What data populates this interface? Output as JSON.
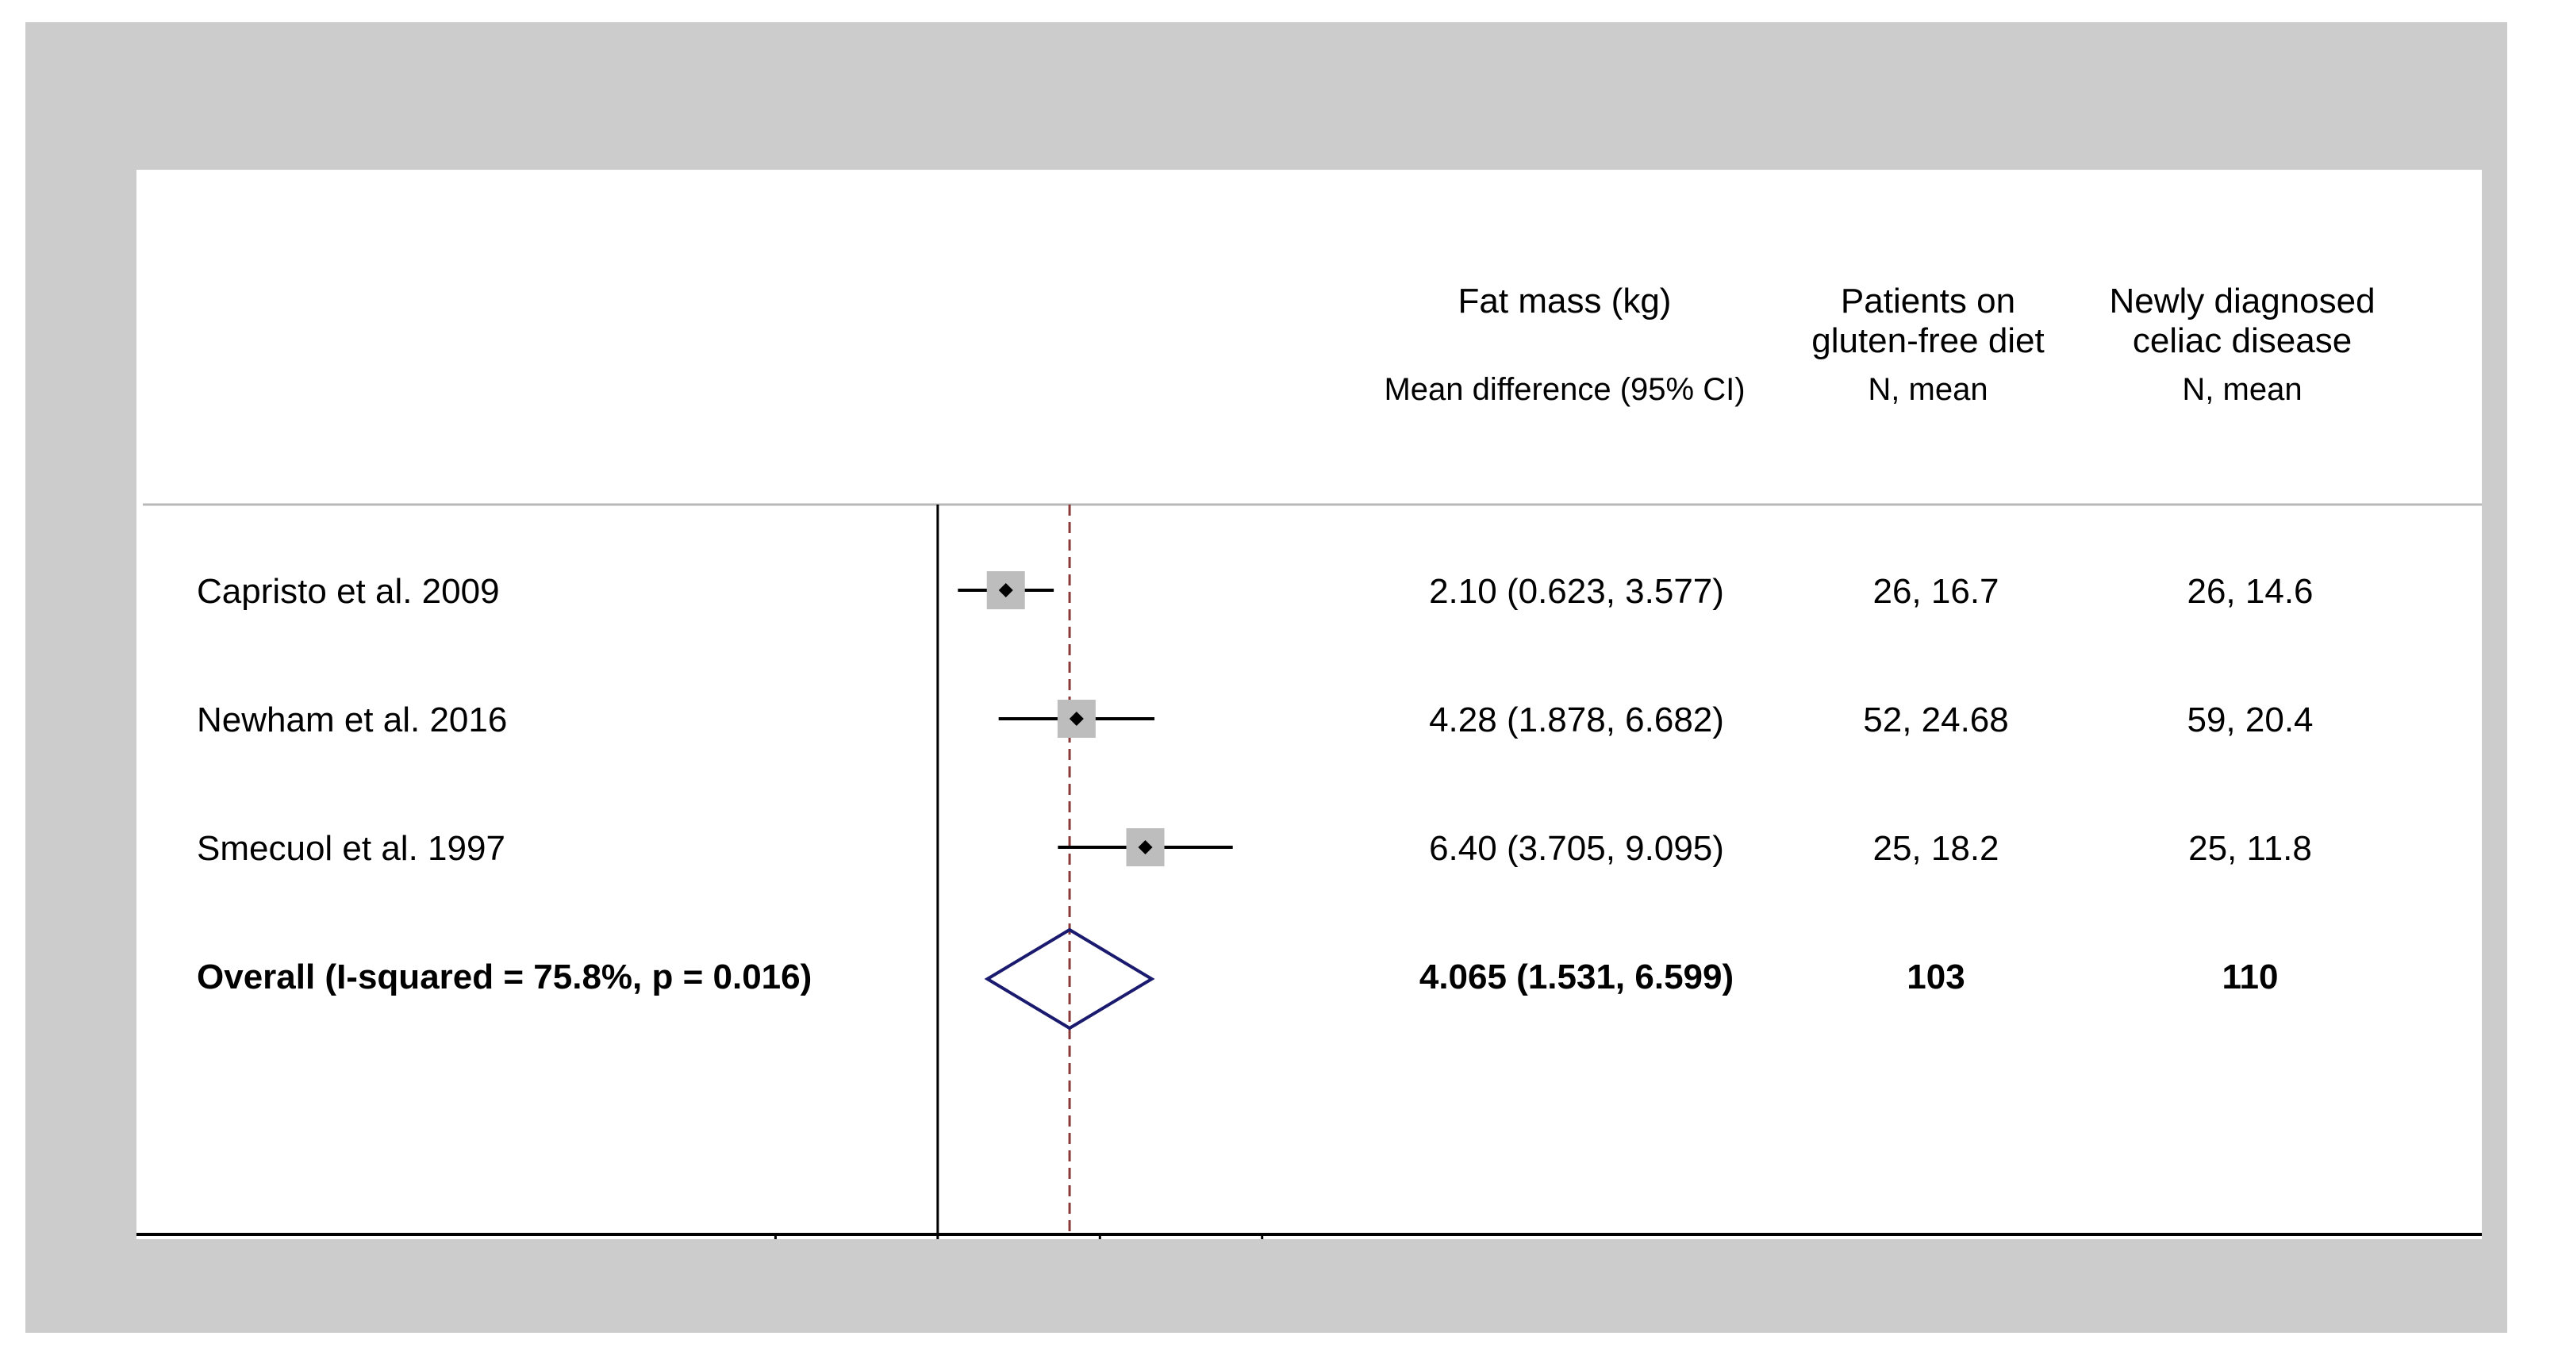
{
  "chart_data": {
    "type": "forest",
    "columns": {
      "effect": {
        "title": "Fat mass (kg)",
        "subtitle": "Mean difference (95% CI)"
      },
      "group1": {
        "title_lines": [
          "Patients on",
          "gluten-free diet"
        ],
        "subtitle": "N, mean"
      },
      "group2": {
        "title_lines": [
          "Newly diagnosed",
          "celiac disease"
        ],
        "subtitle": "N, mean"
      }
    },
    "studies": [
      {
        "name": "Capristo et al. 2009",
        "estimate": 2.1,
        "lower": 0.623,
        "upper": 3.577,
        "ci_text": "2.10 (0.623, 3.577)",
        "group1": "26, 16.7",
        "group2": "26, 14.6",
        "weight": 1.0
      },
      {
        "name": "Newham et al. 2016",
        "estimate": 4.28,
        "lower": 1.878,
        "upper": 6.682,
        "ci_text": "4.28 (1.878, 6.682)",
        "group1": "52, 24.68",
        "group2": "59, 20.4",
        "weight": 1.0
      },
      {
        "name": "Smecuol et al. 1997",
        "estimate": 6.4,
        "lower": 3.705,
        "upper": 9.095,
        "ci_text": "6.40 (3.705, 9.095)",
        "group1": "25, 18.2",
        "group2": "25, 11.8",
        "weight": 1.0
      }
    ],
    "overall": {
      "label": "Overall (I-squared = 75.8%, p = 0.016)",
      "estimate": 4.065,
      "lower": 1.531,
      "upper": 6.599,
      "ci_text": "4.065 (1.531, 6.599)",
      "group1": "103",
      "group2": "110"
    },
    "x_ticks": [
      -5,
      0,
      5,
      10
    ],
    "xlim": [
      -24.7,
      47.6
    ],
    "null_line": 0,
    "colors": {
      "square": "#bdbdbd",
      "diamond": "#1a1a6e",
      "overall_line": "#8b3a3a",
      "frame": "#cccccc"
    }
  }
}
